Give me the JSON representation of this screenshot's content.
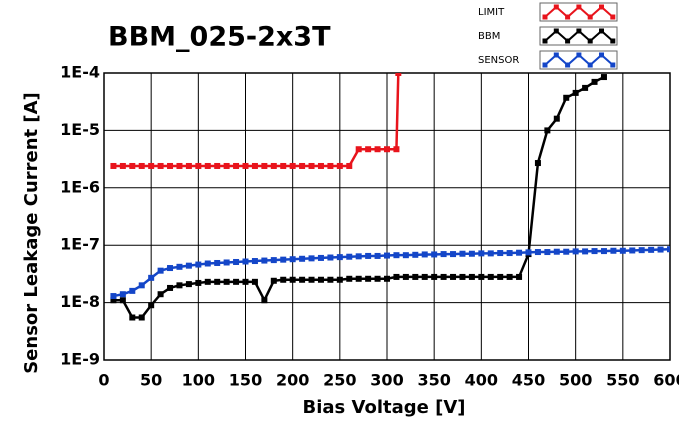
{
  "chart_data": {
    "type": "line",
    "title": "BBM_025-2x3T",
    "x_label": "Bias Voltage [V]",
    "y_label": "Sensor Leakage Current [A]",
    "xlim": [
      0,
      600
    ],
    "xticks": [
      0,
      50,
      100,
      150,
      200,
      250,
      300,
      350,
      400,
      450,
      500,
      550,
      600
    ],
    "ylim": [
      1e-09,
      0.0001
    ],
    "log_y": true,
    "grid": true,
    "legend": "top-right",
    "yticks": [
      {
        "value": 1e-09,
        "label": "1E-9"
      },
      {
        "value": 1e-08,
        "label": "1E-8"
      },
      {
        "value": 1e-07,
        "label": "1E-7"
      },
      {
        "value": 1e-06,
        "label": "1E-6"
      },
      {
        "value": 1e-05,
        "label": "1E-5"
      },
      {
        "value": 0.0001,
        "label": "1E-4"
      }
    ],
    "series": [
      {
        "name": "LIMIT",
        "color": "#e8141c",
        "x": [
          10,
          20,
          30,
          40,
          50,
          60,
          70,
          80,
          90,
          100,
          110,
          120,
          130,
          140,
          150,
          160,
          170,
          180,
          190,
          200,
          210,
          220,
          230,
          240,
          250,
          260,
          270,
          280,
          290,
          300,
          310,
          312
        ],
        "values": [
          2.4e-06,
          2.4e-06,
          2.4e-06,
          2.4e-06,
          2.4e-06,
          2.4e-06,
          2.4e-06,
          2.4e-06,
          2.4e-06,
          2.4e-06,
          2.4e-06,
          2.4e-06,
          2.4e-06,
          2.4e-06,
          2.4e-06,
          2.4e-06,
          2.4e-06,
          2.4e-06,
          2.4e-06,
          2.4e-06,
          2.4e-06,
          2.4e-06,
          2.4e-06,
          2.4e-06,
          2.4e-06,
          2.4e-06,
          4.7e-06,
          4.7e-06,
          4.7e-06,
          4.7e-06,
          4.7e-06,
          0.0001
        ]
      },
      {
        "name": "BBM",
        "color": "#000000",
        "x": [
          10,
          20,
          30,
          40,
          50,
          60,
          70,
          80,
          90,
          100,
          110,
          120,
          130,
          140,
          150,
          160,
          170,
          180,
          190,
          200,
          210,
          220,
          230,
          240,
          250,
          260,
          270,
          280,
          290,
          300,
          310,
          320,
          330,
          340,
          350,
          360,
          370,
          380,
          390,
          400,
          410,
          420,
          430,
          440,
          450,
          460,
          470,
          480,
          490,
          500,
          510,
          520,
          530
        ],
        "values": [
          1.1e-08,
          1.1e-08,
          5.5e-09,
          5.5e-09,
          9e-09,
          1.4e-08,
          1.8e-08,
          2e-08,
          2.1e-08,
          2.2e-08,
          2.3e-08,
          2.3e-08,
          2.3e-08,
          2.3e-08,
          2.3e-08,
          2.3e-08,
          1.1e-08,
          2.4e-08,
          2.5e-08,
          2.5e-08,
          2.5e-08,
          2.5e-08,
          2.5e-08,
          2.5e-08,
          2.5e-08,
          2.6e-08,
          2.6e-08,
          2.6e-08,
          2.6e-08,
          2.6e-08,
          2.8e-08,
          2.8e-08,
          2.8e-08,
          2.8e-08,
          2.8e-08,
          2.8e-08,
          2.8e-08,
          2.8e-08,
          2.8e-08,
          2.8e-08,
          2.8e-08,
          2.8e-08,
          2.8e-08,
          2.8e-08,
          7e-08,
          2.7e-06,
          1e-05,
          1.6e-05,
          3.7e-05,
          4.5e-05,
          5.5e-05,
          7e-05,
          8.5e-05
        ]
      },
      {
        "name": "SENSOR",
        "color": "#1446c8",
        "x": [
          10,
          20,
          30,
          40,
          50,
          60,
          70,
          80,
          90,
          100,
          110,
          120,
          130,
          140,
          150,
          160,
          170,
          180,
          190,
          200,
          210,
          220,
          230,
          240,
          250,
          260,
          270,
          280,
          290,
          300,
          310,
          320,
          330,
          340,
          350,
          360,
          370,
          380,
          390,
          400,
          410,
          420,
          430,
          440,
          450,
          460,
          470,
          480,
          490,
          500,
          510,
          520,
          530,
          540,
          550,
          560,
          570,
          580,
          590,
          600
        ],
        "values": [
          1.3e-08,
          1.4e-08,
          1.6e-08,
          2e-08,
          2.7e-08,
          3.6e-08,
          4e-08,
          4.2e-08,
          4.4e-08,
          4.6e-08,
          4.8e-08,
          4.9e-08,
          5e-08,
          5.1e-08,
          5.2e-08,
          5.3e-08,
          5.4e-08,
          5.5e-08,
          5.6e-08,
          5.7e-08,
          5.8e-08,
          5.9e-08,
          6e-08,
          6.1e-08,
          6.2e-08,
          6.3e-08,
          6.4e-08,
          6.5e-08,
          6.5e-08,
          6.6e-08,
          6.7e-08,
          6.7e-08,
          6.8e-08,
          6.9e-08,
          6.9e-08,
          7e-08,
          7e-08,
          7.1e-08,
          7.1e-08,
          7.2e-08,
          7.2e-08,
          7.3e-08,
          7.3e-08,
          7.4e-08,
          7.5e-08,
          7.6e-08,
          7.6e-08,
          7.7e-08,
          7.7e-08,
          7.8e-08,
          7.8e-08,
          7.9e-08,
          7.9e-08,
          8e-08,
          8e-08,
          8.1e-08,
          8.2e-08,
          8.3e-08,
          8.4e-08,
          8.5e-08
        ]
      }
    ]
  }
}
